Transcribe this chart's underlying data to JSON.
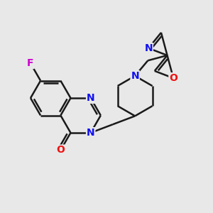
{
  "bg_color": "#e8e8e8",
  "bond_color": "#1a1a1a",
  "bond_width": 1.8,
  "dbo": 0.012,
  "atom_colors": {
    "N": "#1010ee",
    "O": "#ee1010",
    "F": "#cc00cc"
  },
  "font_size": 10,
  "figsize": [
    3.0,
    3.0
  ],
  "dpi": 100,
  "xlim": [
    0.0,
    1.0
  ],
  "ylim": [
    0.05,
    0.95
  ]
}
